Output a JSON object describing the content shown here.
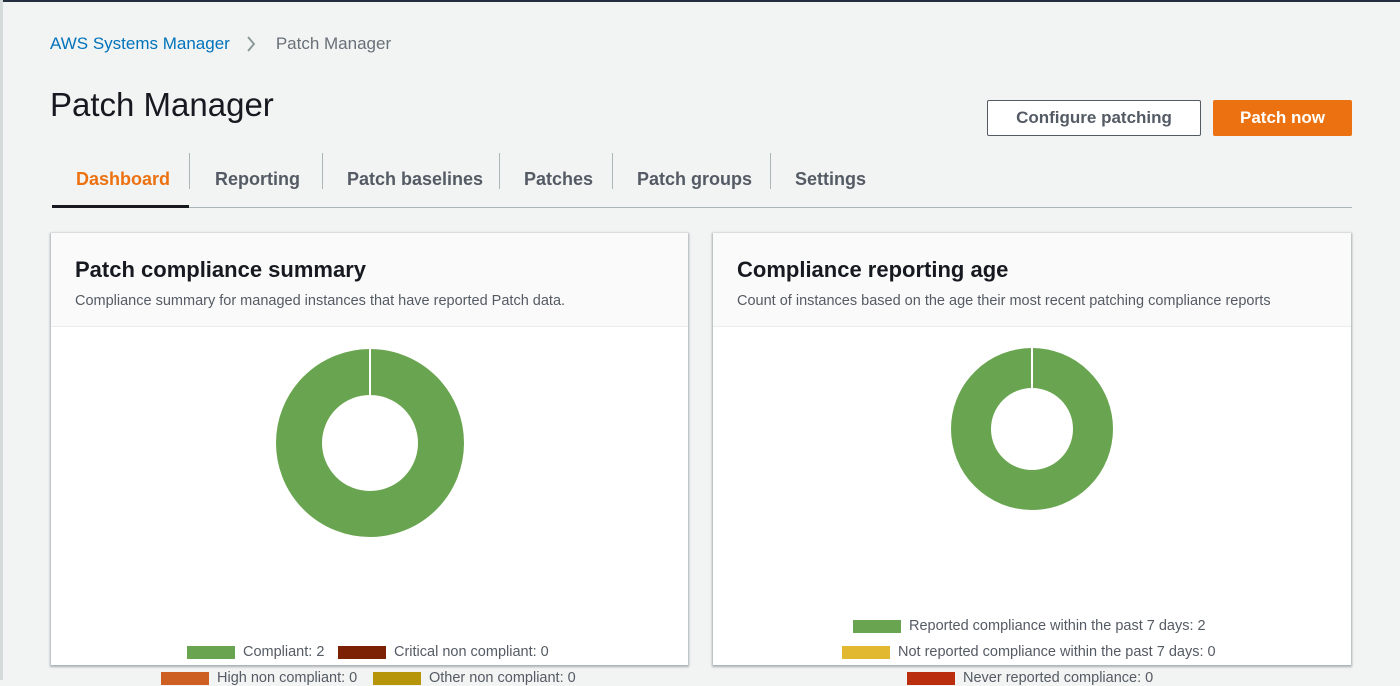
{
  "breadcrumb": {
    "root": "AWS Systems Manager",
    "current": "Patch Manager"
  },
  "page": {
    "title": "Patch Manager"
  },
  "actions": {
    "configure_label": "Configure patching",
    "patch_now_label": "Patch now"
  },
  "tabs": [
    {
      "label": "Dashboard",
      "active": true
    },
    {
      "label": "Reporting",
      "active": false
    },
    {
      "label": "Patch baselines",
      "active": false
    },
    {
      "label": "Patches",
      "active": false
    },
    {
      "label": "Patch groups",
      "active": false
    },
    {
      "label": "Settings",
      "active": false
    }
  ],
  "colors": {
    "accent": "#ec7211",
    "link": "#0073bb",
    "compliant": "#69a550",
    "critical": "#7d2105",
    "high": "#cc5f21",
    "other": "#b7950b",
    "not_reported": "#e2b830",
    "never": "#ba2e0f"
  },
  "summary_card": {
    "title": "Patch compliance summary",
    "description": "Compliance summary for managed instances that have reported Patch data.",
    "legend": [
      {
        "label": "Compliant: 2",
        "color": "#69a550"
      },
      {
        "label": "Critical non compliant: 0",
        "color": "#7d2105"
      },
      {
        "label": "High non compliant: 0",
        "color": "#cc5f21"
      },
      {
        "label": "Other non compliant: 0",
        "color": "#b7950b"
      }
    ]
  },
  "age_card": {
    "title": "Compliance reporting age",
    "description": "Count of instances based on the age their most recent patching compliance reports",
    "legend": [
      {
        "label": "Reported compliance within the past 7 days: 2",
        "color": "#69a550"
      },
      {
        "label": "Not reported compliance within the past 7 days: 0",
        "color": "#e2b830"
      },
      {
        "label": "Never reported compliance: 0",
        "color": "#ba2e0f"
      }
    ]
  }
}
